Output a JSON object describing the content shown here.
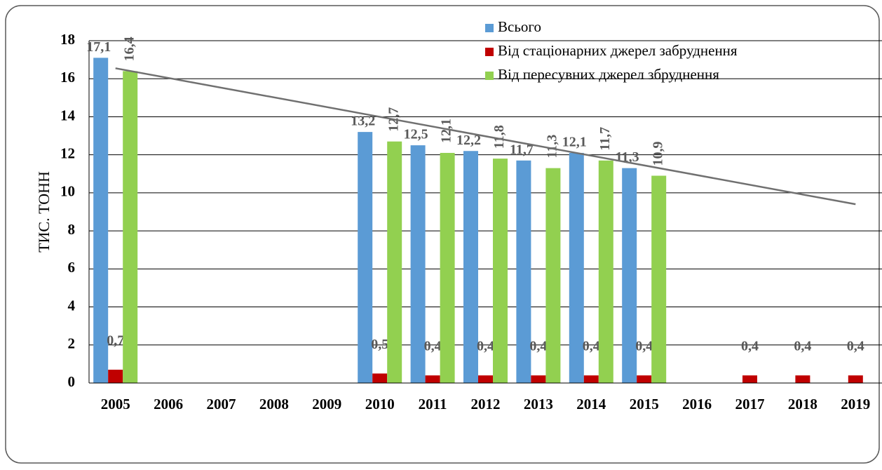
{
  "chart_data": {
    "type": "bar",
    "y_axis_label": "ТИС. ТОНН",
    "categories": [
      "2005",
      "2006",
      "2007",
      "2008",
      "2009",
      "2010",
      "2011",
      "2012",
      "2013",
      "2014",
      "2015",
      "2016",
      "2017",
      "2018",
      "2019"
    ],
    "series": [
      {
        "name": "Всього",
        "color": "#5b9bd5",
        "values": [
          17.1,
          null,
          null,
          null,
          null,
          13.2,
          12.5,
          12.2,
          11.7,
          12.1,
          11.3,
          null,
          null,
          null,
          null
        ],
        "value_labels": [
          "17,1",
          null,
          null,
          null,
          null,
          "13,2",
          "12,5",
          "12,2",
          "11,7",
          "12,1",
          "11,3",
          null,
          null,
          null,
          null
        ]
      },
      {
        "name": "Від стаціонарних джерел забруднення",
        "color": "#c00000",
        "values": [
          0.7,
          null,
          null,
          null,
          null,
          0.5,
          0.4,
          0.4,
          0.4,
          0.4,
          0.4,
          null,
          0.4,
          0.4,
          0.4
        ],
        "value_labels": [
          "0,7",
          null,
          null,
          null,
          null,
          "0,5",
          "0,4",
          "0,4",
          "0,4",
          "0,4",
          "0,4",
          null,
          "0,4",
          "0,4",
          "0,4"
        ]
      },
      {
        "name": "Від пересувних джерел збруднення",
        "color": "#92d050",
        "values": [
          16.4,
          null,
          null,
          null,
          null,
          12.7,
          12.1,
          11.8,
          11.3,
          11.7,
          10.9,
          null,
          null,
          null,
          null
        ],
        "value_labels": [
          "16,4",
          null,
          null,
          null,
          null,
          "12,7",
          "12,1",
          "11,8",
          "11,3",
          "11,7",
          "10,9",
          null,
          null,
          null,
          null
        ]
      }
    ],
    "trendline": {
      "x": [
        "2005",
        "2019"
      ],
      "values": [
        16.55,
        9.4
      ],
      "color": "#707070"
    },
    "ylim": [
      0,
      18
    ],
    "yticks": [
      0,
      2,
      4,
      6,
      8,
      10,
      12,
      14,
      16,
      18
    ],
    "grid": true,
    "legend": "top-right"
  }
}
